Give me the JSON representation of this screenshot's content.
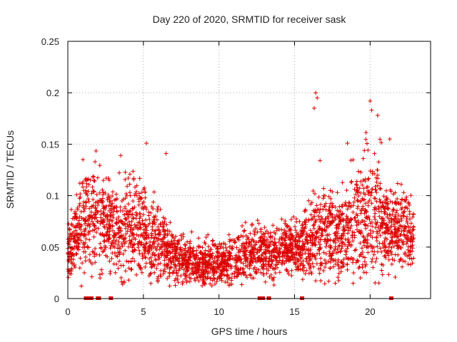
{
  "chart_data": {
    "type": "scatter",
    "title": "Day 220 of 2020, SRMTID for receiver sask",
    "xlabel": "GPS time / hours",
    "ylabel": "SRMTID / TECUs",
    "xlim": [
      0,
      24
    ],
    "ylim": [
      0,
      0.25
    ],
    "xticks": [
      0,
      5,
      10,
      15,
      20
    ],
    "xtick_labels": [
      "0",
      "5",
      "10",
      "15",
      "20"
    ],
    "yticks": [
      0,
      0.05,
      0.1,
      0.15,
      0.2,
      0.25
    ],
    "ytick_labels": [
      "0",
      "0.05",
      "0.1",
      "0.15",
      "0.2",
      "0.25"
    ],
    "grid": true,
    "marker": "plus",
    "color": "#dd0000",
    "series": [
      {
        "name": "SRMTID",
        "x_range": [
          0,
          22.9
        ],
        "approx_points": 3000,
        "envelope_x": [
          0,
          0.5,
          1,
          1.5,
          2,
          2.5,
          3,
          3.5,
          4,
          4.5,
          5,
          5.5,
          6,
          6.5,
          7,
          7.5,
          8,
          8.5,
          9,
          9.5,
          10,
          10.5,
          11,
          11.5,
          12,
          12.5,
          13,
          13.5,
          14,
          14.5,
          15,
          15.5,
          16,
          16.5,
          17,
          17.5,
          18,
          18.5,
          19,
          19.5,
          20,
          20.5,
          21,
          21.5,
          22,
          22.5,
          22.9
        ],
        "envelope_median": [
          0.045,
          0.06,
          0.075,
          0.08,
          0.08,
          0.075,
          0.07,
          0.065,
          0.068,
          0.07,
          0.065,
          0.058,
          0.055,
          0.05,
          0.042,
          0.038,
          0.035,
          0.035,
          0.033,
          0.034,
          0.036,
          0.035,
          0.037,
          0.04,
          0.045,
          0.048,
          0.045,
          0.045,
          0.048,
          0.05,
          0.05,
          0.05,
          0.06,
          0.07,
          0.065,
          0.063,
          0.065,
          0.068,
          0.075,
          0.08,
          0.085,
          0.08,
          0.07,
          0.068,
          0.068,
          0.065,
          0.06
        ],
        "envelope_spread": [
          0.012,
          0.018,
          0.025,
          0.025,
          0.025,
          0.022,
          0.022,
          0.022,
          0.022,
          0.022,
          0.022,
          0.02,
          0.018,
          0.015,
          0.012,
          0.012,
          0.01,
          0.01,
          0.01,
          0.01,
          0.01,
          0.01,
          0.012,
          0.012,
          0.012,
          0.012,
          0.012,
          0.012,
          0.013,
          0.013,
          0.013,
          0.013,
          0.02,
          0.025,
          0.022,
          0.02,
          0.02,
          0.022,
          0.025,
          0.028,
          0.03,
          0.028,
          0.022,
          0.02,
          0.02,
          0.018,
          0.015
        ],
        "peaks": [
          {
            "x": 1.0,
            "y": 0.135
          },
          {
            "x": 1.8,
            "y": 0.133
          },
          {
            "x": 3.5,
            "y": 0.139
          },
          {
            "x": 5.2,
            "y": 0.151
          },
          {
            "x": 6.5,
            "y": 0.141
          },
          {
            "x": 16.4,
            "y": 0.2
          },
          {
            "x": 16.5,
            "y": 0.195
          },
          {
            "x": 16.3,
            "y": 0.185
          },
          {
            "x": 18.5,
            "y": 0.151
          },
          {
            "x": 20.0,
            "y": 0.192
          },
          {
            "x": 20.1,
            "y": 0.183
          },
          {
            "x": 20.5,
            "y": 0.178
          },
          {
            "x": 21.3,
            "y": 0.155
          }
        ]
      },
      {
        "name": "flags",
        "y": 0,
        "x": [
          1.2,
          1.4,
          1.55,
          2.0,
          2.05,
          2.85,
          12.7,
          12.8,
          12.9,
          13.3,
          15.5,
          21.4
        ]
      }
    ]
  }
}
